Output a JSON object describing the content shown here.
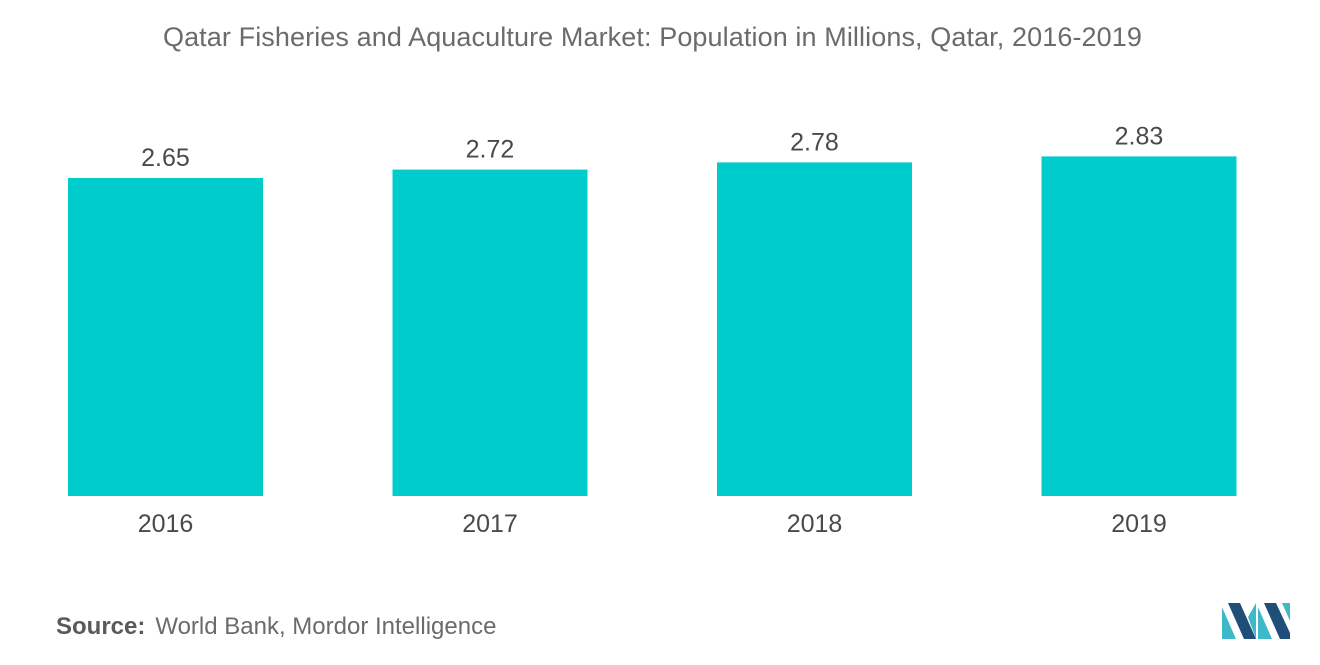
{
  "header": {
    "title": "Qatar  Fisheries and Aquaculture Market:  Population in Millions, Qatar, 2016-2019"
  },
  "chart_data": {
    "type": "bar",
    "title": "Qatar  Fisheries and Aquaculture Market:  Population in Millions, Qatar, 2016-2019",
    "categories": [
      "2016",
      "2017",
      "2018",
      "2019"
    ],
    "values": [
      2.65,
      2.72,
      2.78,
      2.83
    ],
    "value_labels": [
      "2.65",
      "2.72",
      "2.78",
      "2.83"
    ],
    "xlabel": "",
    "ylabel": "",
    "ylim": [
      0,
      3.3
    ],
    "grid": false,
    "legend": "none",
    "bar_color": "#00cccc"
  },
  "footer": {
    "source_label": "Source:",
    "source_text": "World Bank, Mordor Intelligence"
  },
  "colors": {
    "accent": "#00cccc",
    "logo_dark": "#1f4e79",
    "logo_light": "#3fb8c8"
  }
}
